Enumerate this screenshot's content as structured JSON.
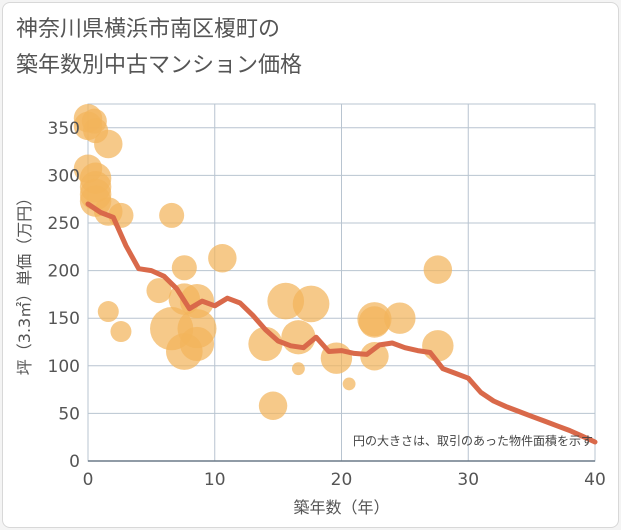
{
  "title": {
    "line1": "神奈川県横浜市南区榎町の",
    "line2": "築年数別中古マンション価格"
  },
  "colors": {
    "line": "#d9694a",
    "bubble": "#f2b45c",
    "grid": "#b8c4d0",
    "background": "#ffffff"
  },
  "chart_data": {
    "type": "scatter",
    "xlabel": "築年数（年）",
    "ylabel": "坪（3.3㎡）単価（万円）",
    "xlim": [
      0,
      40
    ],
    "ylim": [
      0,
      375
    ],
    "x_ticks": [
      0,
      10,
      20,
      30,
      40
    ],
    "y_ticks": [
      0,
      50,
      100,
      150,
      200,
      250,
      300,
      350
    ],
    "grid": true,
    "annotation": "円の大きさは、取引のあった物件面積を示す",
    "bubbles": [
      {
        "x": 0,
        "y": 360,
        "size": 2
      },
      {
        "x": 0,
        "y": 352,
        "size": 2
      },
      {
        "x": 0,
        "y": 307,
        "size": 2
      },
      {
        "x": 0.5,
        "y": 357,
        "size": 1.5
      },
      {
        "x": 0.6,
        "y": 347,
        "size": 1.5
      },
      {
        "x": 0.6,
        "y": 297,
        "size": 2.5
      },
      {
        "x": 0.6,
        "y": 288,
        "size": 2.5
      },
      {
        "x": 0.6,
        "y": 280,
        "size": 2.5
      },
      {
        "x": 0.6,
        "y": 273,
        "size": 2.5
      },
      {
        "x": 1.6,
        "y": 333,
        "size": 2
      },
      {
        "x": 1.6,
        "y": 262,
        "size": 2
      },
      {
        "x": 1.6,
        "y": 157,
        "size": 1
      },
      {
        "x": 2.6,
        "y": 258,
        "size": 1.5
      },
      {
        "x": 2.6,
        "y": 136,
        "size": 1
      },
      {
        "x": 5.6,
        "y": 179,
        "size": 1.5
      },
      {
        "x": 6.6,
        "y": 258,
        "size": 1.5
      },
      {
        "x": 6.6,
        "y": 139,
        "size": 5
      },
      {
        "x": 7.6,
        "y": 203,
        "size": 1.5
      },
      {
        "x": 7.6,
        "y": 170,
        "size": 2.5
      },
      {
        "x": 7.6,
        "y": 115,
        "size": 3.5
      },
      {
        "x": 8.6,
        "y": 168,
        "size": 3
      },
      {
        "x": 8.6,
        "y": 139,
        "size": 4
      },
      {
        "x": 8.6,
        "y": 123,
        "size": 3
      },
      {
        "x": 10.6,
        "y": 213,
        "size": 2
      },
      {
        "x": 14.6,
        "y": 58,
        "size": 2
      },
      {
        "x": 14.0,
        "y": 123,
        "size": 3
      },
      {
        "x": 15.6,
        "y": 168,
        "size": 3.5
      },
      {
        "x": 16.6,
        "y": 130,
        "size": 3
      },
      {
        "x": 16.6,
        "y": 97,
        "size": 0.3
      },
      {
        "x": 17.6,
        "y": 165,
        "size": 3.5
      },
      {
        "x": 19.6,
        "y": 108,
        "size": 2.5
      },
      {
        "x": 20.6,
        "y": 81,
        "size": 0.3
      },
      {
        "x": 22.6,
        "y": 149,
        "size": 3
      },
      {
        "x": 22.6,
        "y": 146,
        "size": 2.5
      },
      {
        "x": 22.6,
        "y": 110,
        "size": 2
      },
      {
        "x": 24.6,
        "y": 150,
        "size": 2.5
      },
      {
        "x": 27.6,
        "y": 201,
        "size": 2
      },
      {
        "x": 27.6,
        "y": 121,
        "size": 2.5
      }
    ],
    "trend": {
      "x": [
        0,
        1,
        2,
        3,
        4,
        5,
        6,
        7,
        8,
        9,
        10,
        11,
        12,
        13,
        14,
        15,
        16,
        17,
        18,
        19,
        20,
        21,
        22,
        23,
        24,
        25,
        26,
        27,
        28,
        29,
        30,
        31,
        32,
        33,
        34,
        35,
        36,
        37,
        38,
        39,
        40
      ],
      "y": [
        270,
        261,
        256,
        226,
        202,
        200,
        194,
        181,
        160,
        168,
        163,
        171,
        166,
        153,
        138,
        126,
        121,
        119,
        130,
        115,
        116,
        113,
        112,
        122,
        124,
        119,
        116,
        114,
        97,
        92,
        87,
        72,
        63,
        57,
        52,
        47,
        42,
        37,
        32,
        26,
        20
      ]
    }
  }
}
